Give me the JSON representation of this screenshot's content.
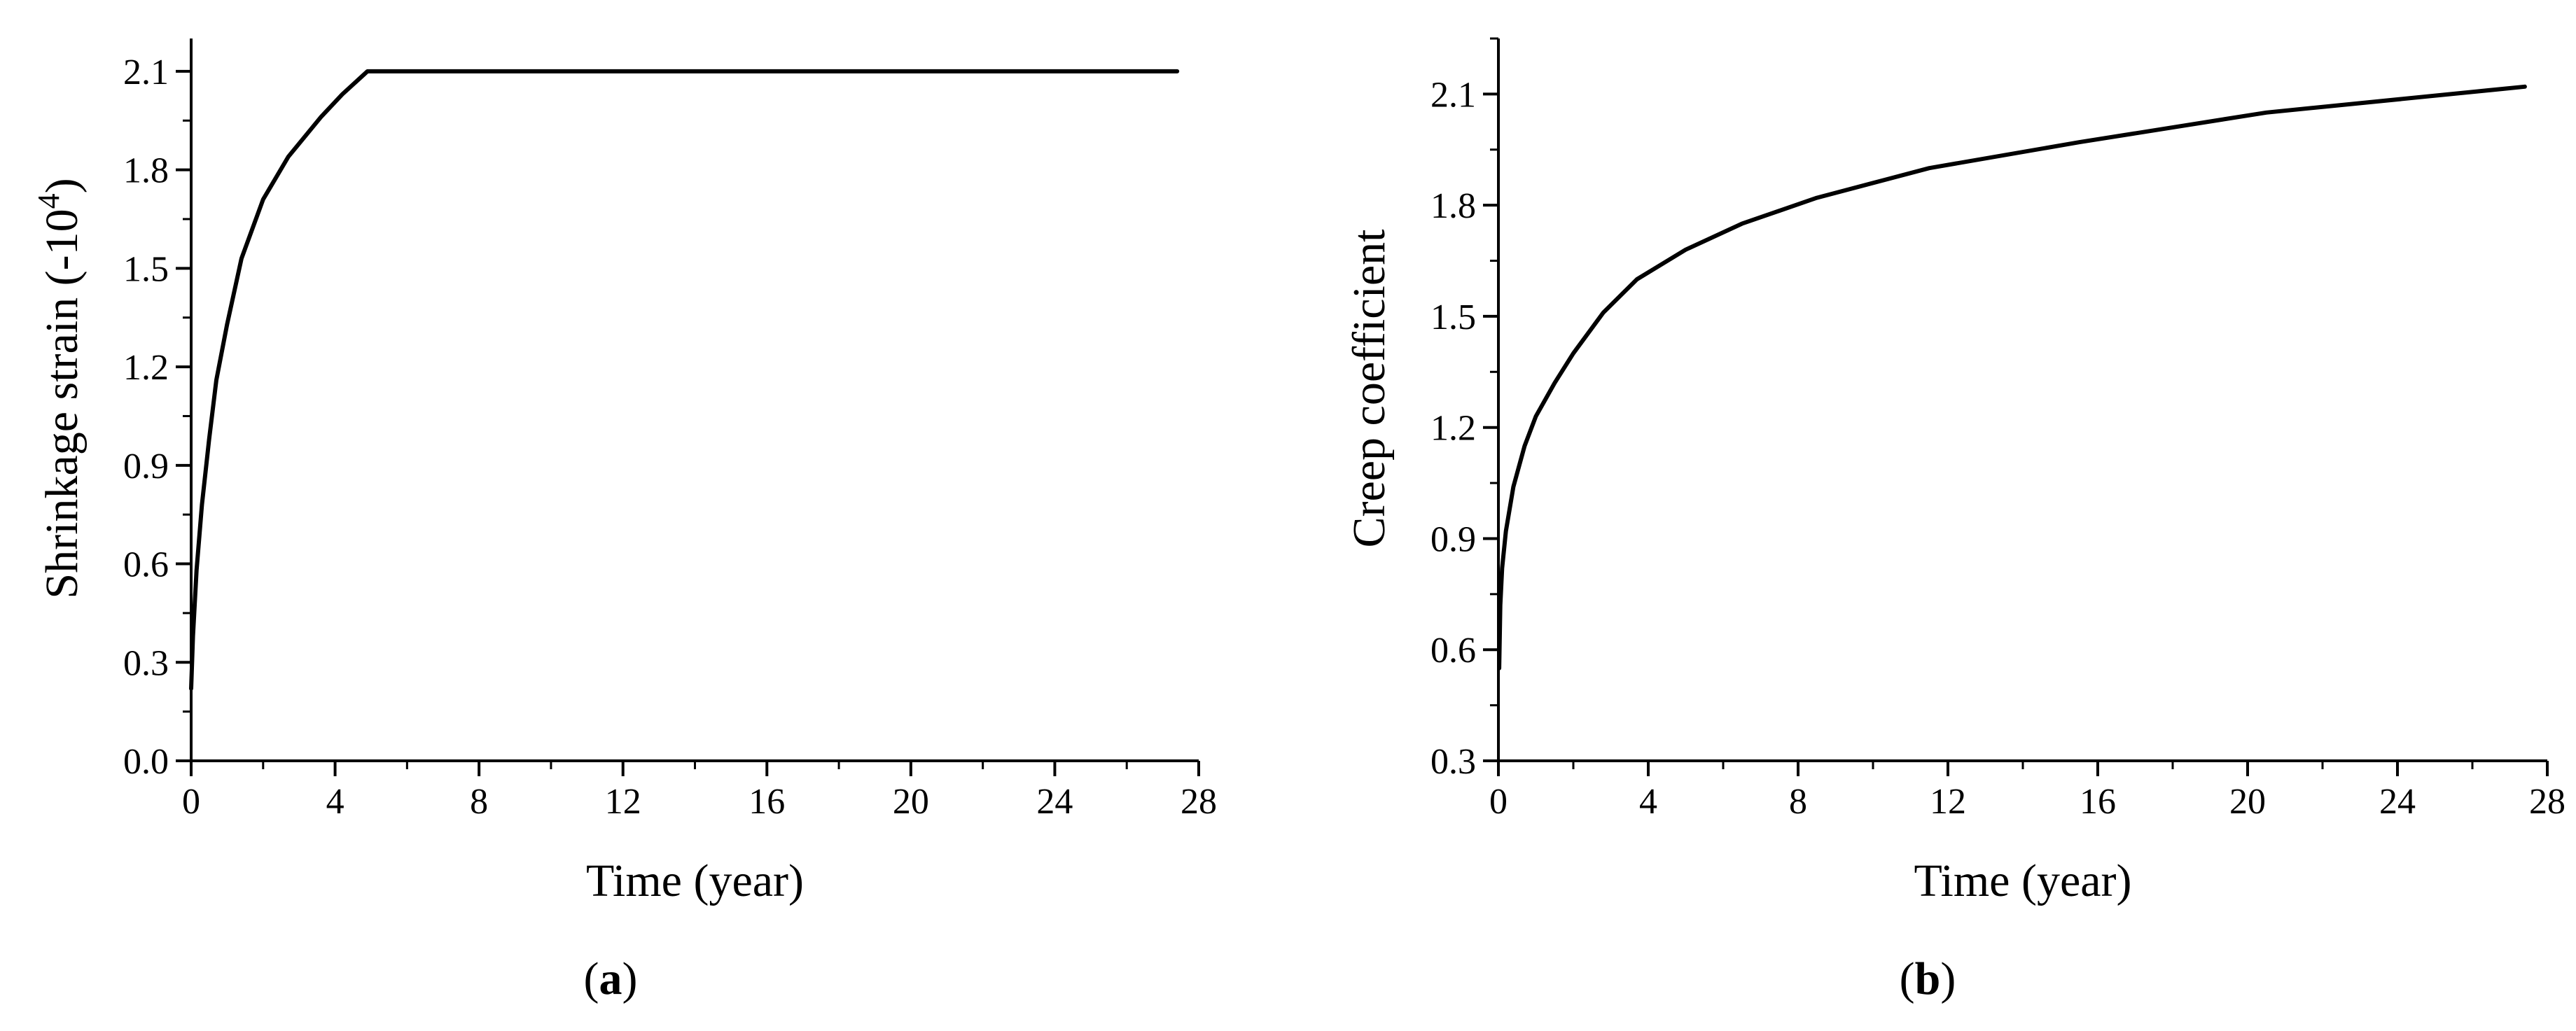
{
  "chart_data": [
    {
      "panel_label": "a",
      "type": "line",
      "xlabel": "Time (year)",
      "ylabel_prefix": "Shrinkage strain (-10",
      "ylabel_sup": "4",
      "ylabel_suffix": ")",
      "xlim": [
        0,
        28
      ],
      "ylim": [
        0,
        2.2
      ],
      "xticks": [
        0,
        4,
        8,
        12,
        16,
        20,
        24,
        28
      ],
      "xtick_labels": [
        "0",
        "4",
        "8",
        "12",
        "16",
        "20",
        "24",
        "28"
      ],
      "yticks": [
        0,
        0.3,
        0.6,
        0.9,
        1.2,
        1.5,
        1.8,
        2.1
      ],
      "ytick_labels": [
        "0.0",
        "0.3",
        "0.6",
        "0.9",
        "1.2",
        "1.5",
        "1.8",
        "2.1"
      ],
      "grid": false,
      "line_color": "#000000",
      "series": [
        {
          "x": [
            0,
            0.05,
            0.15,
            0.3,
            0.5,
            0.7,
            1.0,
            1.4,
            2.0,
            2.7,
            3.6,
            4.2,
            4.9,
            27.4
          ],
          "y": [
            0.22,
            0.38,
            0.58,
            0.78,
            0.98,
            1.16,
            1.33,
            1.53,
            1.71,
            1.84,
            1.96,
            2.03,
            2.1,
            2.1
          ]
        }
      ]
    },
    {
      "panel_label": "b",
      "type": "line",
      "xlabel": "Time (year)",
      "ylabel": "Creep coefficient",
      "xlim": [
        0,
        28
      ],
      "ylim": [
        0.3,
        2.25
      ],
      "xticks": [
        0,
        4,
        8,
        12,
        16,
        20,
        24,
        28
      ],
      "xtick_labels": [
        "0",
        "4",
        "8",
        "12",
        "16",
        "20",
        "24",
        "28"
      ],
      "yticks": [
        0.3,
        0.6,
        0.9,
        1.2,
        1.5,
        1.8,
        2.1
      ],
      "ytick_labels": [
        "0.3",
        "0.6",
        "0.9",
        "1.2",
        "1.5",
        "1.8",
        "2.1"
      ],
      "grid": false,
      "line_color": "#000000",
      "series": [
        {
          "x": [
            0.02,
            0.05,
            0.1,
            0.2,
            0.4,
            0.7,
            1.0,
            1.5,
            2.0,
            2.8,
            3.7,
            5.0,
            6.5,
            8.5,
            11.5,
            15.5,
            20.5,
            27.4
          ],
          "y": [
            0.55,
            0.72,
            0.82,
            0.92,
            1.04,
            1.15,
            1.23,
            1.32,
            1.4,
            1.51,
            1.6,
            1.68,
            1.75,
            1.82,
            1.9,
            1.97,
            2.05,
            2.12
          ]
        }
      ]
    }
  ],
  "captions": [
    {
      "open": "(",
      "letter": "a",
      "close": ")"
    },
    {
      "open": "(",
      "letter": "b",
      "close": ")"
    }
  ]
}
